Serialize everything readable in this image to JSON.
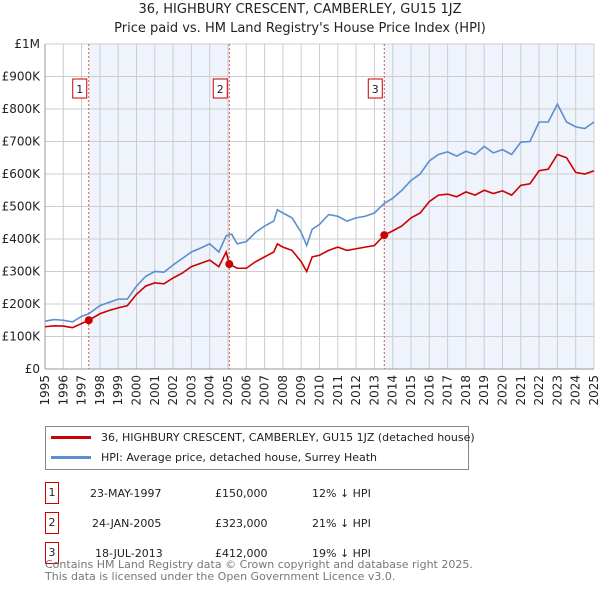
{
  "title": "36, HIGHBURY CRESCENT, CAMBERLEY, GU15 1JZ",
  "subtitle": "Price paid vs. HM Land Registry's House Price Index (HPI)",
  "chart_data": {
    "type": "line",
    "title": "36, HIGHBURY CRESCENT, CAMBERLEY, GU15 1JZ",
    "subtitle": "Price paid vs. HM Land Registry's House Price Index (HPI)",
    "xlim": [
      1995,
      2025
    ],
    "ylim": [
      0,
      1000000
    ],
    "x_ticks": [
      "1995",
      "1996",
      "1997",
      "1998",
      "1999",
      "2000",
      "2001",
      "2002",
      "2003",
      "2004",
      "2005",
      "2006",
      "2007",
      "2008",
      "2009",
      "2010",
      "2011",
      "2012",
      "2013",
      "2014",
      "2015",
      "2016",
      "2017",
      "2018",
      "2019",
      "2020",
      "2021",
      "2022",
      "2023",
      "2024",
      "2025"
    ],
    "y_ticks": [
      {
        "v": 0,
        "label": "£0"
      },
      {
        "v": 100000,
        "label": "£100K"
      },
      {
        "v": 200000,
        "label": "£200K"
      },
      {
        "v": 300000,
        "label": "£300K"
      },
      {
        "v": 400000,
        "label": "£400K"
      },
      {
        "v": 500000,
        "label": "£500K"
      },
      {
        "v": 600000,
        "label": "£600K"
      },
      {
        "v": 700000,
        "label": "£700K"
      },
      {
        "v": 800000,
        "label": "£800K"
      },
      {
        "v": 900000,
        "label": "£900K"
      },
      {
        "v": 1000000,
        "label": "£1M"
      }
    ],
    "grid": true,
    "series": [
      {
        "name": "36, HIGHBURY CRESCENT, CAMBERLEY, GU15 1JZ (detached house)",
        "color": "#cc0000",
        "x": [
          1995,
          1995.5,
          1996,
          1996.5,
          1997,
          1997.39,
          1998,
          1998.5,
          1999,
          1999.5,
          2000,
          2000.5,
          2001,
          2001.5,
          2002,
          2002.5,
          2003,
          2003.5,
          2004,
          2004.5,
          2004.9,
          2005.07,
          2005.5,
          2006,
          2006.5,
          2007,
          2007.5,
          2007.7,
          2008,
          2008.5,
          2009,
          2009.3,
          2009.6,
          2010,
          2010.5,
          2011,
          2011.5,
          2012,
          2012.5,
          2013,
          2013.54,
          2014,
          2014.5,
          2015,
          2015.5,
          2016,
          2016.5,
          2017,
          2017.5,
          2018,
          2018.5,
          2019,
          2019.5,
          2020,
          2020.5,
          2021,
          2021.5,
          2022,
          2022.5,
          2023,
          2023.5,
          2024,
          2024.5,
          2025
        ],
        "y": [
          130000,
          133000,
          132000,
          127000,
          140000,
          150000,
          170000,
          180000,
          188000,
          195000,
          230000,
          255000,
          265000,
          262000,
          280000,
          295000,
          315000,
          325000,
          335000,
          315000,
          360000,
          323000,
          310000,
          310000,
          330000,
          345000,
          360000,
          385000,
          375000,
          365000,
          330000,
          300000,
          345000,
          350000,
          365000,
          375000,
          365000,
          370000,
          375000,
          380000,
          412000,
          425000,
          440000,
          465000,
          480000,
          515000,
          535000,
          538000,
          530000,
          545000,
          535000,
          550000,
          540000,
          548000,
          535000,
          565000,
          570000,
          610000,
          615000,
          660000,
          650000,
          605000,
          600000,
          610000
        ]
      },
      {
        "name": "HPI: Average price, detached house, Surrey Heath",
        "color": "#5b8fd0",
        "x": [
          1995,
          1995.5,
          1996,
          1996.5,
          1997,
          1997.39,
          1998,
          1998.5,
          1999,
          1999.5,
          2000,
          2000.5,
          2001,
          2001.5,
          2002,
          2002.5,
          2003,
          2003.5,
          2004,
          2004.5,
          2004.9,
          2005.2,
          2005.5,
          2006,
          2006.5,
          2007,
          2007.5,
          2007.7,
          2008,
          2008.5,
          2009,
          2009.3,
          2009.6,
          2010,
          2010.5,
          2011,
          2011.5,
          2012,
          2012.5,
          2013,
          2013.54,
          2014,
          2014.5,
          2015,
          2015.5,
          2016,
          2016.5,
          2017,
          2017.5,
          2018,
          2018.5,
          2019,
          2019.5,
          2020,
          2020.5,
          2021,
          2021.5,
          2022,
          2022.5,
          2023,
          2023.5,
          2024,
          2024.5,
          2025
        ],
        "y": [
          147000,
          152000,
          150000,
          145000,
          162000,
          170000,
          195000,
          205000,
          215000,
          215000,
          255000,
          285000,
          300000,
          298000,
          320000,
          340000,
          360000,
          372000,
          385000,
          360000,
          410000,
          415000,
          385000,
          392000,
          420000,
          440000,
          455000,
          490000,
          480000,
          465000,
          420000,
          380000,
          430000,
          445000,
          475000,
          470000,
          455000,
          465000,
          470000,
          480000,
          510000,
          525000,
          550000,
          580000,
          600000,
          640000,
          660000,
          668000,
          655000,
          670000,
          660000,
          685000,
          665000,
          675000,
          660000,
          698000,
          700000,
          760000,
          760000,
          815000,
          760000,
          745000,
          740000,
          760000
        ]
      }
    ],
    "sales": [
      {
        "num": "1",
        "x": 1997.39,
        "y": 150000,
        "date": "23-MAY-1997",
        "price": "£150,000",
        "hpi": "12% ↓ HPI"
      },
      {
        "num": "2",
        "x": 2005.07,
        "y": 323000,
        "date": "24-JAN-2005",
        "price": "£323,000",
        "hpi": "21% ↓ HPI"
      },
      {
        "num": "3",
        "x": 2013.54,
        "y": 412000,
        "date": "18-JUL-2013",
        "price": "£412,000",
        "hpi": "19% ↓ HPI"
      }
    ],
    "shaded_ranges": [
      [
        1997.39,
        2005.07
      ],
      [
        2013.54,
        2025
      ]
    ],
    "legend_position": "below"
  },
  "footer": [
    "Contains HM Land Registry data © Crown copyright and database right 2025.",
    "This data is licensed under the Open Government Licence v3.0."
  ]
}
